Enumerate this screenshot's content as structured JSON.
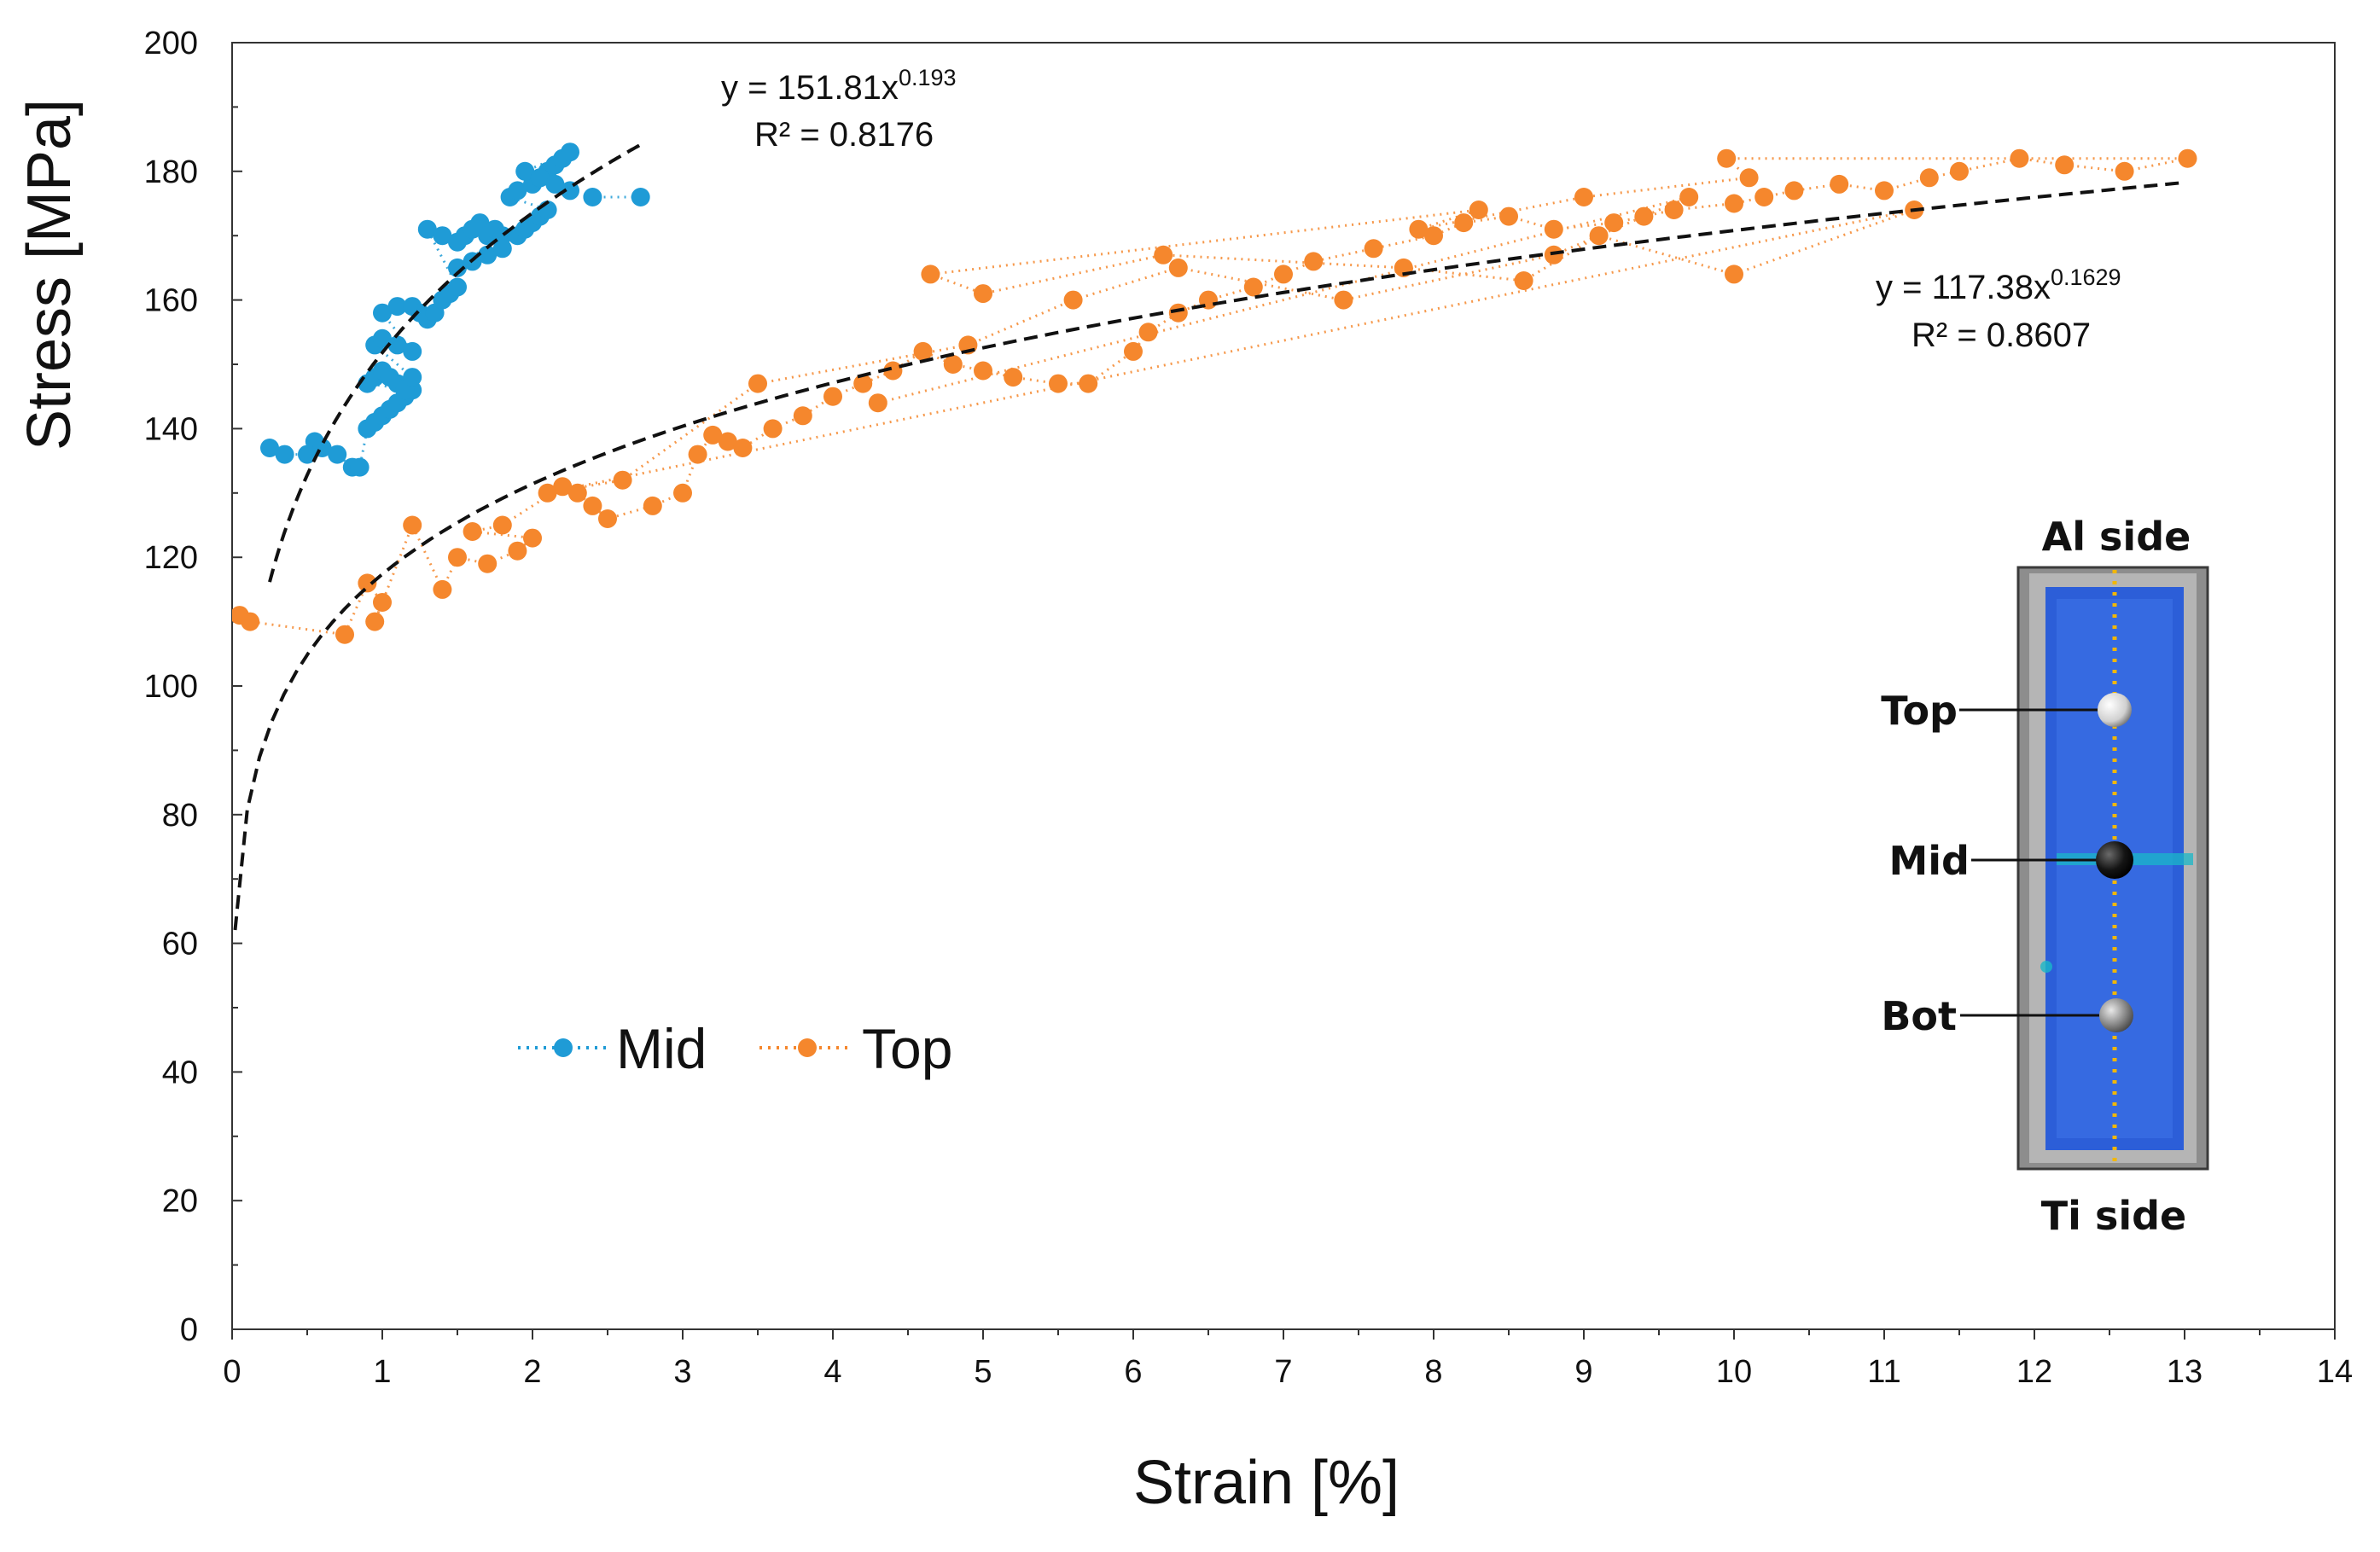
{
  "chart_data": {
    "type": "scatter",
    "title": "",
    "xlabel": "Strain [%]",
    "ylabel": "Stress [MPa]",
    "xlim": [
      0,
      14
    ],
    "ylim": [
      0,
      200
    ],
    "xticks": [
      0,
      1,
      2,
      3,
      4,
      5,
      6,
      7,
      8,
      9,
      10,
      11,
      12,
      13,
      14
    ],
    "yticks": [
      0,
      20,
      40,
      60,
      80,
      100,
      120,
      140,
      160,
      180,
      200
    ],
    "grid": false,
    "legend": {
      "placement": "lower-left",
      "entries": [
        "Mid",
        "Top"
      ]
    },
    "series": [
      {
        "name": "Mid",
        "color": "#1f9bd6",
        "marker": "circle",
        "line": "dotted",
        "x": [
          0.25,
          0.35,
          0.5,
          0.55,
          0.6,
          0.7,
          0.8,
          0.85,
          0.9,
          0.95,
          1.0,
          1.05,
          1.1,
          1.15,
          1.2,
          0.9,
          0.95,
          1.0,
          1.05,
          1.1,
          1.15,
          1.2,
          0.95,
          1.0,
          1.1,
          1.2,
          1.0,
          1.1,
          1.2,
          1.25,
          1.3,
          1.35,
          1.4,
          1.45,
          1.5,
          1.3,
          1.4,
          1.5,
          1.55,
          1.6,
          1.65,
          1.7,
          1.75,
          1.8,
          1.5,
          1.6,
          1.7,
          1.8,
          1.9,
          1.95,
          2.0,
          2.05,
          2.1,
          1.85,
          1.9,
          2.0,
          2.05,
          2.1,
          2.15,
          2.2,
          2.25,
          1.95,
          2.05,
          2.15,
          2.25,
          2.4,
          2.72
        ],
        "y": [
          137,
          136,
          136,
          138,
          137,
          136,
          134,
          134,
          140,
          141,
          142,
          143,
          144,
          145,
          146,
          147,
          148,
          149,
          148,
          147,
          146,
          148,
          153,
          154,
          153,
          152,
          158,
          159,
          159,
          158,
          157,
          158,
          160,
          161,
          162,
          171,
          170,
          169,
          170,
          171,
          172,
          170,
          171,
          170,
          165,
          166,
          167,
          168,
          170,
          171,
          172,
          173,
          174,
          176,
          177,
          178,
          179,
          180,
          181,
          182,
          183,
          180,
          179,
          178,
          177,
          176,
          176
        ]
      },
      {
        "name": "Top",
        "color": "#f5872d",
        "marker": "circle",
        "line": "dotted",
        "x": [
          0.05,
          0.12,
          0.75,
          0.9,
          1.0,
          0.95,
          1.2,
          1.4,
          1.5,
          1.7,
          1.9,
          2.0,
          1.6,
          1.8,
          2.2,
          2.3,
          2.4,
          2.5,
          2.8,
          3.0,
          3.1,
          3.2,
          3.3,
          3.4,
          3.6,
          3.8,
          4.0,
          4.2,
          4.4,
          4.6,
          4.8,
          5.0,
          5.2,
          5.5,
          5.7,
          6.0,
          6.1,
          6.3,
          6.5,
          6.8,
          7.0,
          7.2,
          7.6,
          8.0,
          8.2,
          8.5,
          8.8,
          9.2,
          9.4,
          9.6,
          10.0,
          10.2,
          10.4,
          10.7,
          11.0,
          11.3,
          11.5,
          11.9,
          12.2,
          12.6,
          13.02,
          9.95,
          10.1,
          9.0,
          7.9,
          8.3,
          4.65,
          5.0,
          6.2,
          7.8,
          8.6,
          9.1,
          10.0,
          11.2,
          2.1,
          2.6,
          3.5,
          4.9,
          5.6,
          6.3,
          7.4,
          8.8,
          9.7,
          4.3
        ],
        "y": [
          111,
          110,
          108,
          116,
          113,
          110,
          125,
          115,
          120,
          119,
          121,
          123,
          124,
          125,
          131,
          130,
          128,
          126,
          128,
          130,
          136,
          139,
          138,
          137,
          140,
          142,
          145,
          147,
          149,
          152,
          150,
          149,
          148,
          147,
          147,
          152,
          155,
          158,
          160,
          162,
          164,
          166,
          168,
          170,
          172,
          173,
          171,
          172,
          173,
          174,
          175,
          176,
          177,
          178,
          177,
          179,
          180,
          182,
          181,
          180,
          182,
          182,
          179,
          176,
          171,
          174,
          164,
          161,
          167,
          165,
          163,
          170,
          164,
          174,
          130,
          132,
          147,
          153,
          160,
          165,
          160,
          167,
          176,
          144
        ]
      }
    ],
    "fits": [
      {
        "series": "Mid",
        "a": 151.81,
        "b": 0.193,
        "x_range": [
          0.25,
          2.75
        ]
      },
      {
        "series": "Top",
        "a": 117.38,
        "b": 0.1629,
        "x_range": [
          0.02,
          13.0
        ]
      }
    ],
    "annotations": [
      {
        "eq_prefix": "y = 151.81x",
        "eq_exp": "0.193",
        "r2": "R² = 0.8176"
      },
      {
        "eq_prefix": "y = 117.38x",
        "eq_exp": "0.1629",
        "r2": "R² = 0.8607"
      }
    ],
    "inset": {
      "top_label": "Al side",
      "bottom_label": "Ti side",
      "markers": [
        "Top",
        "Mid",
        "Bot"
      ]
    }
  }
}
